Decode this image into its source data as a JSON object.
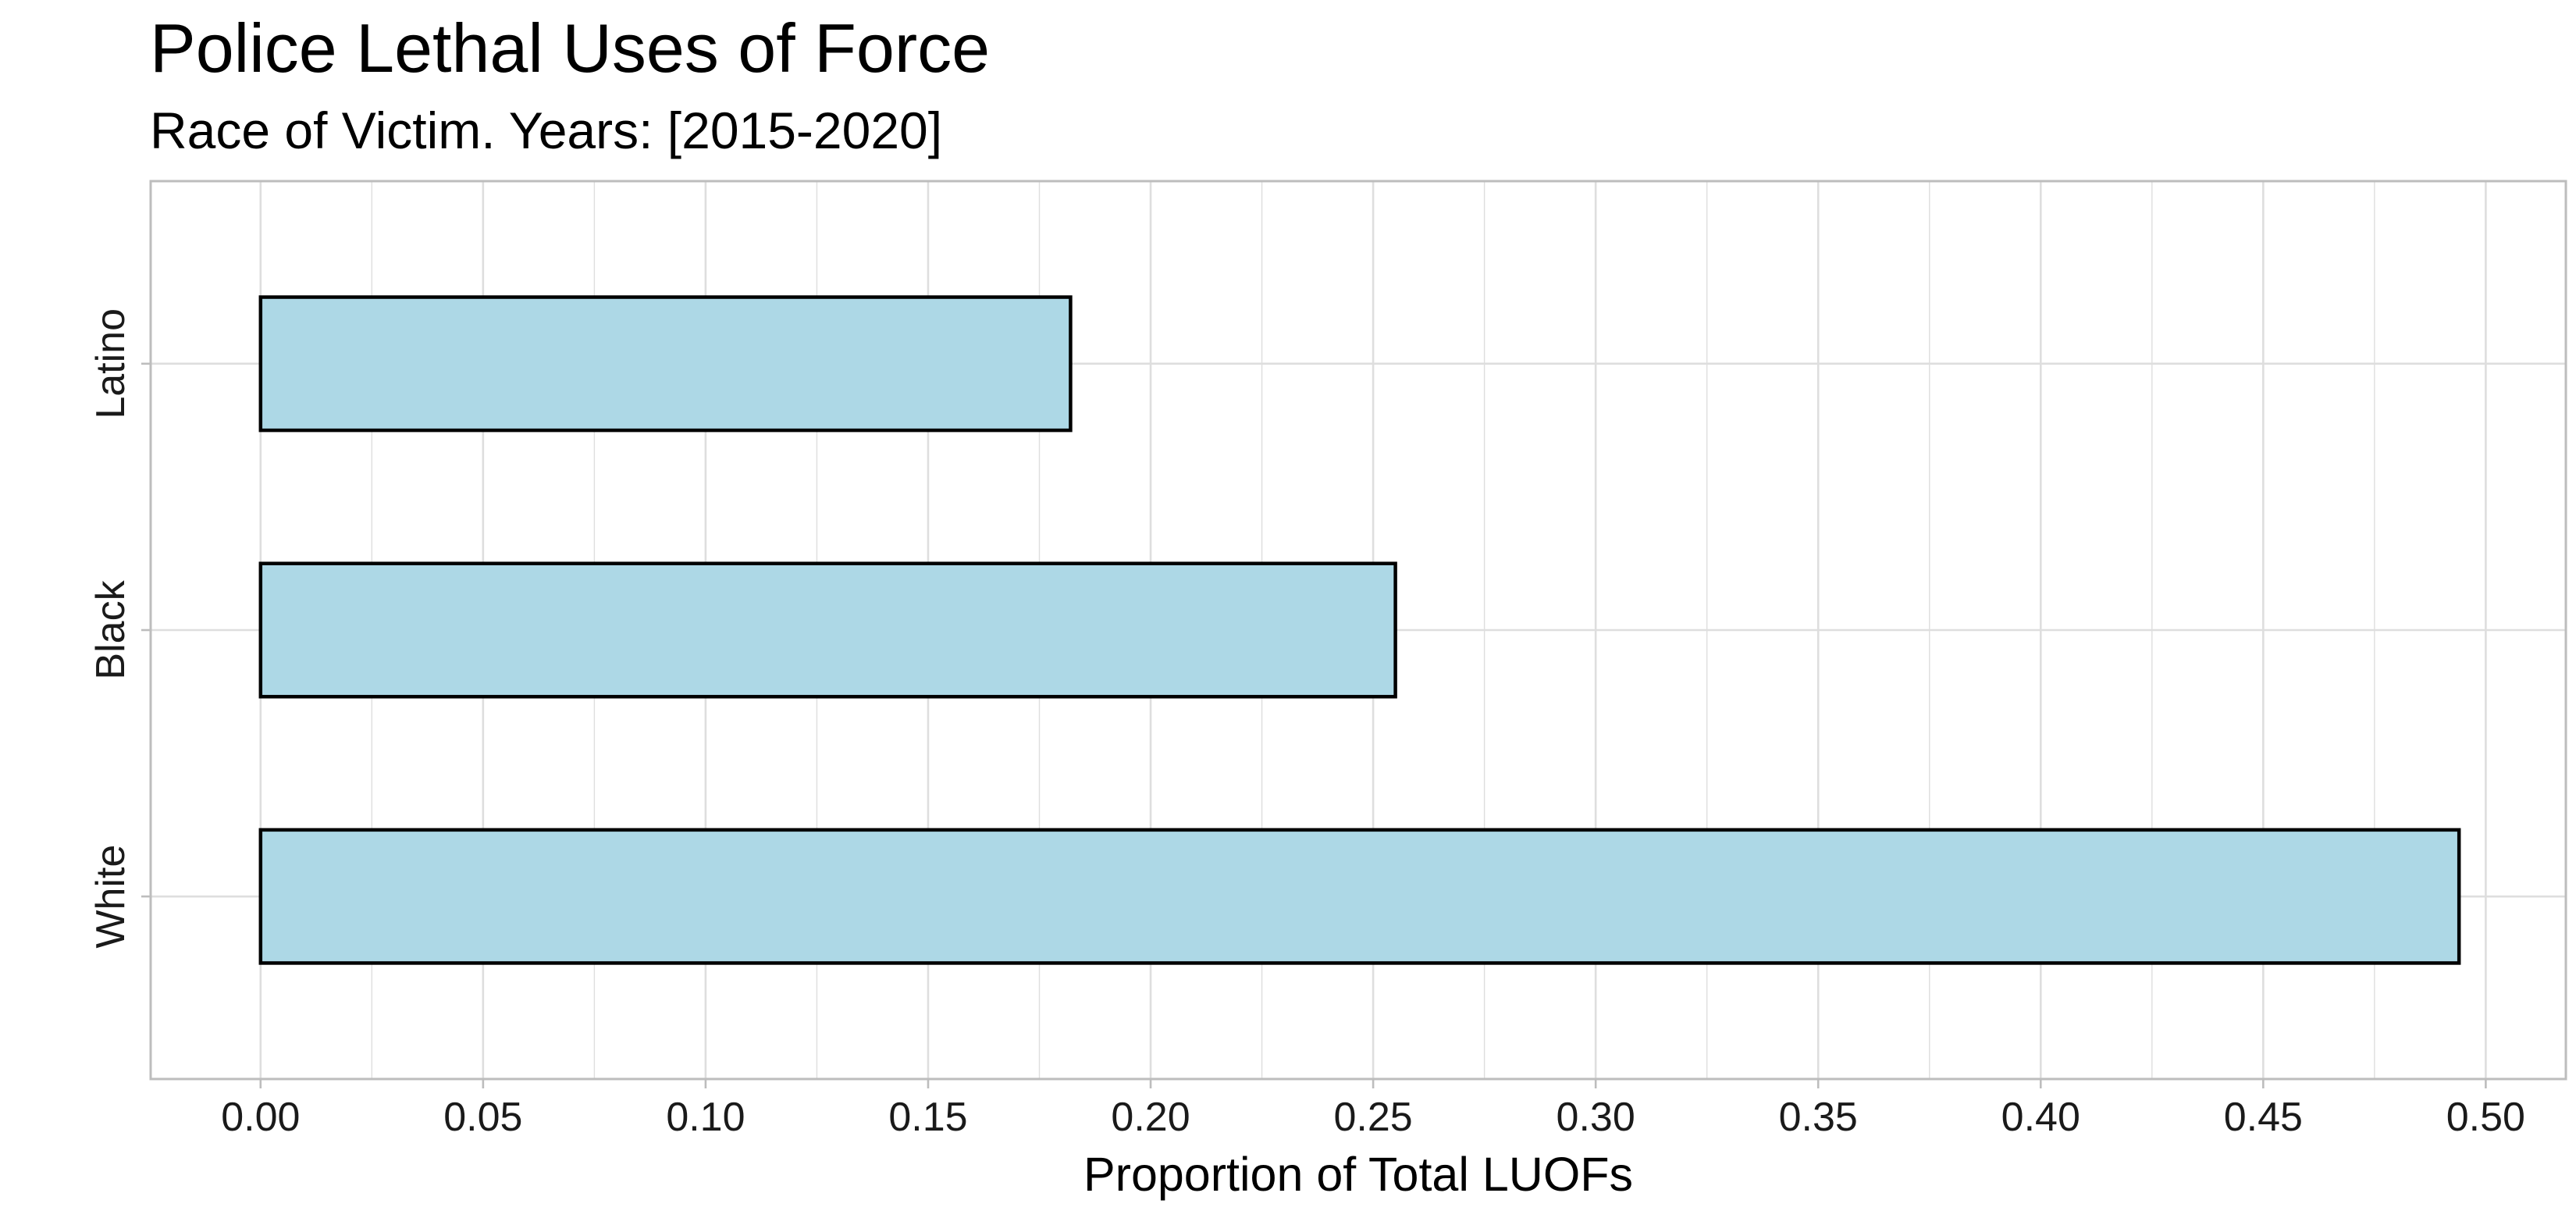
{
  "chart_data": {
    "type": "bar",
    "orientation": "horizontal",
    "title": "Police Lethal Uses of Force",
    "subtitle": "Race of Victim. Years: [2015-2020]",
    "xlabel": "Proportion of Total LUOFs",
    "ylabel": "",
    "categories": [
      "White",
      "Black",
      "Latino"
    ],
    "values": [
      0.494,
      0.255,
      0.182
    ],
    "xlim": [
      -0.0247,
      0.518
    ],
    "x_ticks": [
      0.0,
      0.05,
      0.1,
      0.15,
      0.2,
      0.25,
      0.3,
      0.35,
      0.4,
      0.45,
      0.5
    ],
    "x_tick_labels": [
      "0.00",
      "0.05",
      "0.10",
      "0.15",
      "0.20",
      "0.25",
      "0.30",
      "0.35",
      "0.40",
      "0.45",
      "0.50"
    ],
    "grid": true,
    "bar_fill": "#add8e6",
    "bar_outline": "#000000",
    "grid_color": "#dedede",
    "panel_border_color": "#bdbdbd"
  }
}
